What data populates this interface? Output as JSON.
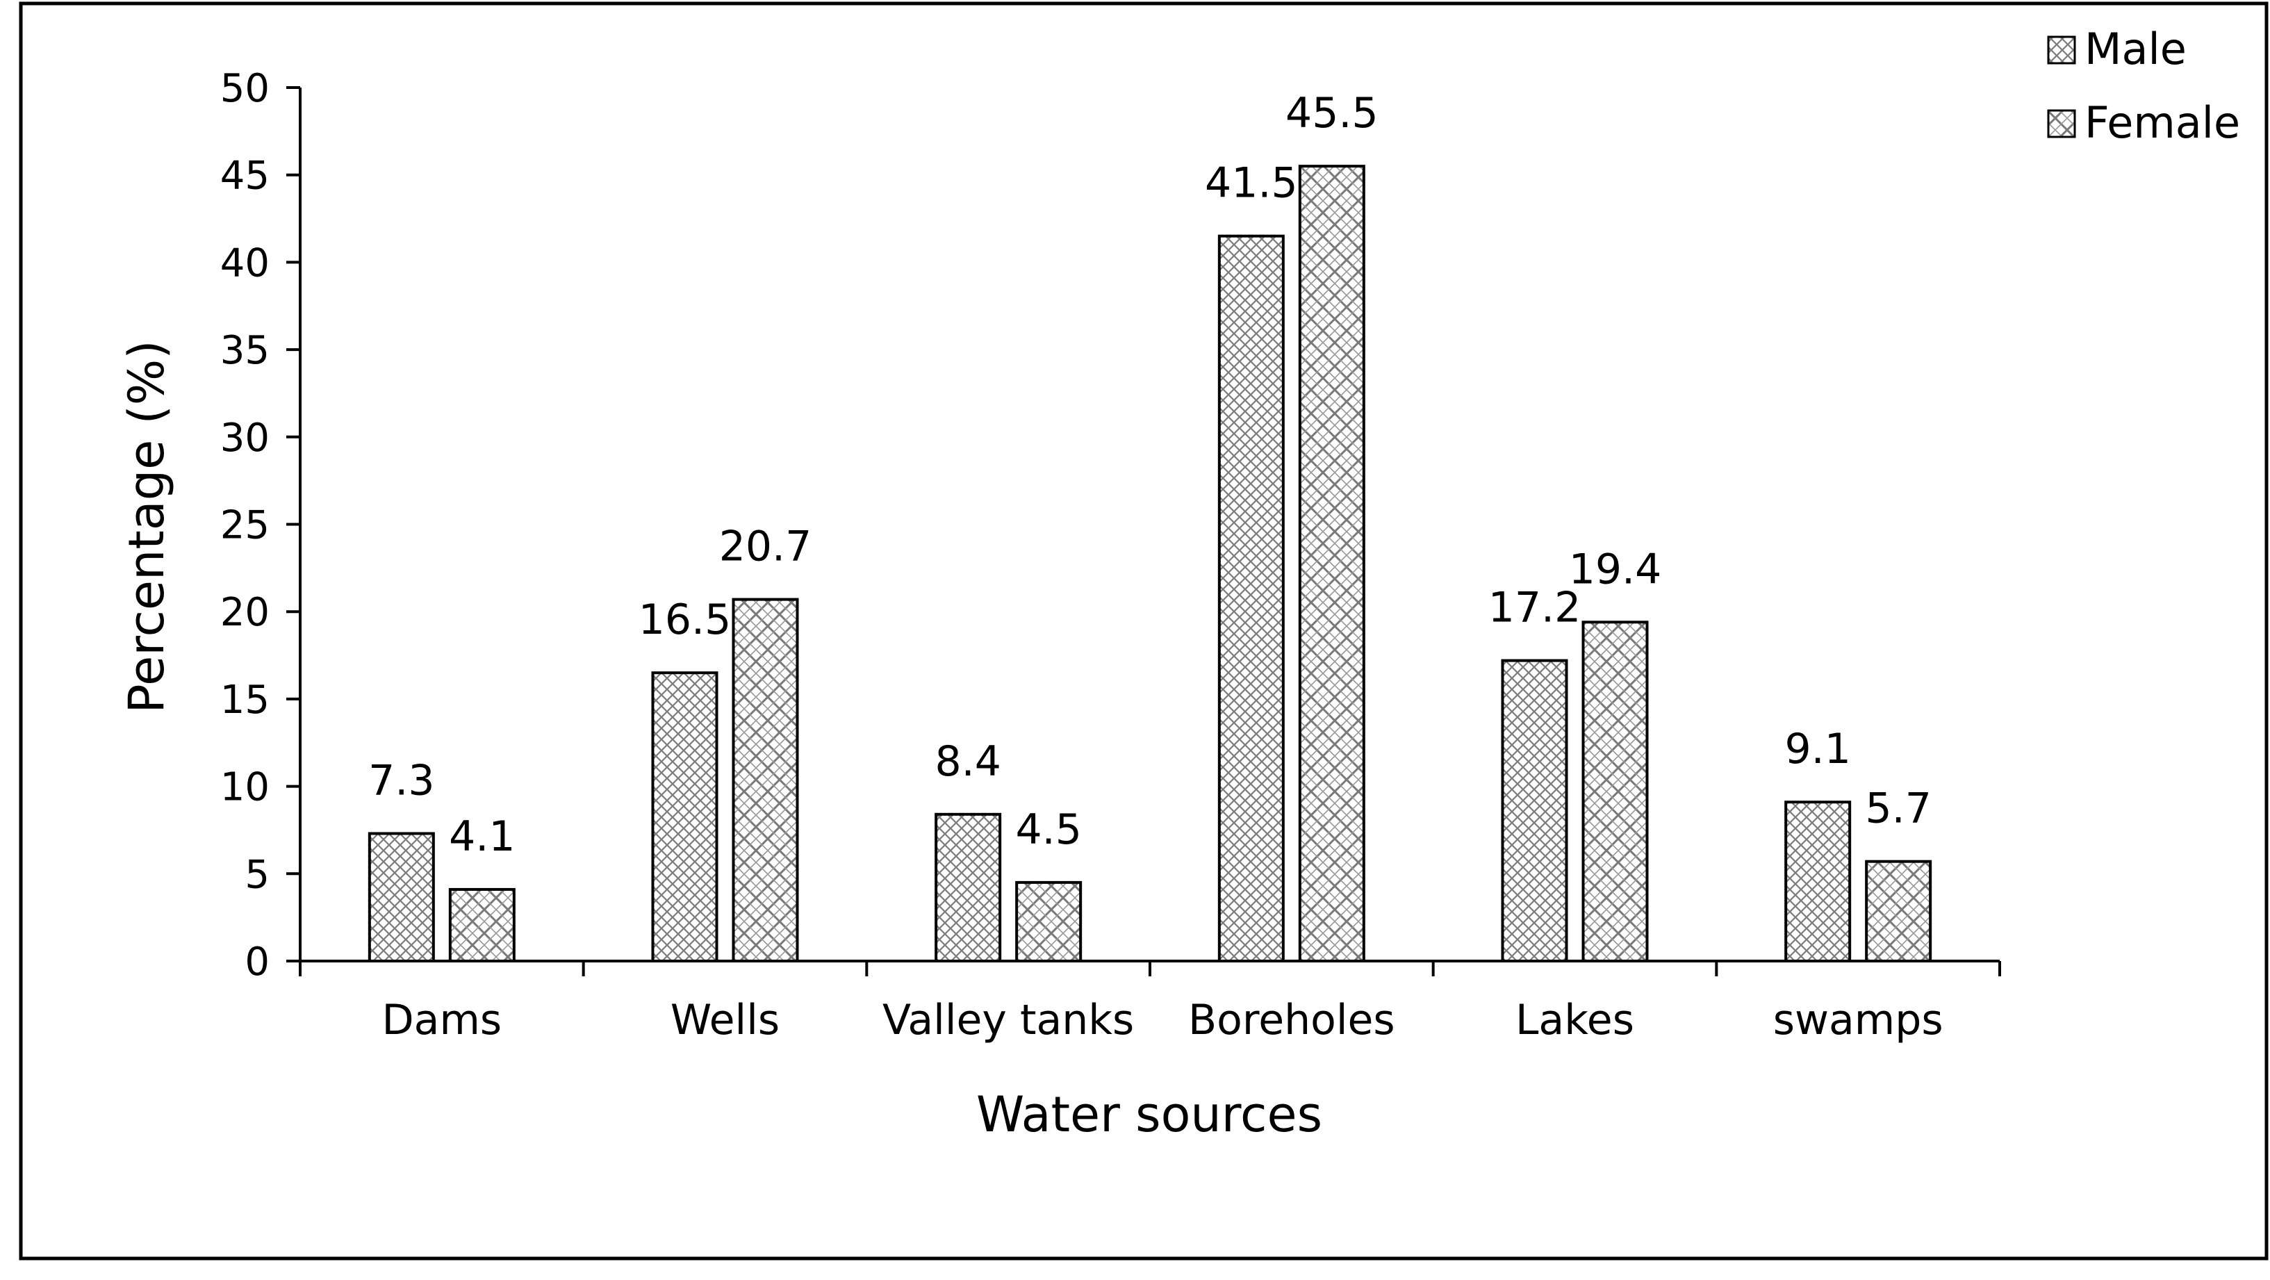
{
  "chart_data": {
    "type": "bar",
    "title": "",
    "xlabel": "Water sources",
    "ylabel": "Percentage (%)",
    "ylim": [
      0,
      50
    ],
    "yticks": [
      0,
      5,
      10,
      15,
      20,
      25,
      30,
      35,
      40,
      45,
      50
    ],
    "grid": false,
    "legend_position": "top-right",
    "categories": [
      "Dams",
      "Wells",
      "Valley tanks",
      "Boreholes",
      "Lakes",
      "swamps"
    ],
    "series": [
      {
        "name": "Male",
        "values": [
          7.3,
          16.5,
          8.4,
          41.5,
          17.2,
          9.1
        ],
        "pattern": "crosshatch-fine"
      },
      {
        "name": "Female",
        "values": [
          4.1,
          20.7,
          4.5,
          45.5,
          19.4,
          5.7
        ],
        "pattern": "crosshatch-diamond"
      }
    ],
    "data_labels": [
      [
        "7.3",
        "16.5",
        "8.4",
        "41.5",
        "17.2",
        "9.1"
      ],
      [
        "4.1",
        "20.7",
        "4.5",
        "45.5",
        "19.4",
        "5.7"
      ]
    ],
    "colors": {
      "bar_stroke": "#000000",
      "hatch": "#7a7a7a",
      "background": "#ffffff"
    }
  }
}
